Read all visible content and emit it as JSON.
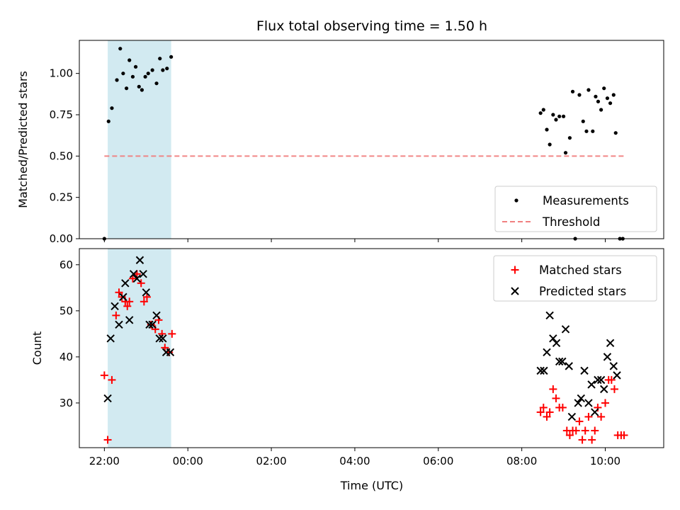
{
  "chart_data": {
    "type": "scatter",
    "title": "Flux total observing time = 1.50 h",
    "xlabel": "Time (UTC)",
    "x_unit": "hours since 22:00 UTC (tick labels wrap past 24:00)",
    "xlim": [
      -0.6,
      13.4
    ],
    "xticks": [
      0,
      2,
      4,
      6,
      8,
      10,
      12
    ],
    "xtick_labels": [
      "22:00",
      "00:00",
      "02:00",
      "04:00",
      "06:00",
      "08:00",
      "10:00"
    ],
    "observing_span": {
      "start": 0.08,
      "end": 1.6,
      "color": "#add8e6"
    },
    "top": {
      "ylabel": "Matched/Predicted stars",
      "ylim": [
        0,
        1.2
      ],
      "yticks": [
        0.0,
        0.25,
        0.5,
        0.75,
        1.0
      ],
      "ytick_labels": [
        "0.00",
        "0.25",
        "0.50",
        "0.75",
        "1.00"
      ],
      "legend": {
        "position": "bottom-right",
        "entries": [
          "Measurements",
          "Threshold"
        ]
      },
      "series": [
        {
          "name": "Measurements",
          "marker": "dot",
          "color": "#000000",
          "points": [
            [
              0.0,
              0.0
            ],
            [
              0.1,
              0.71
            ],
            [
              0.18,
              0.79
            ],
            [
              0.3,
              0.96
            ],
            [
              0.38,
              1.15
            ],
            [
              0.45,
              1.0
            ],
            [
              0.53,
              0.91
            ],
            [
              0.6,
              1.08
            ],
            [
              0.68,
              0.98
            ],
            [
              0.75,
              1.04
            ],
            [
              0.83,
              0.92
            ],
            [
              0.9,
              0.9
            ],
            [
              0.98,
              0.98
            ],
            [
              1.05,
              1.0
            ],
            [
              1.15,
              1.02
            ],
            [
              1.25,
              0.94
            ],
            [
              1.33,
              1.09
            ],
            [
              1.4,
              1.02
            ],
            [
              1.5,
              1.03
            ],
            [
              1.6,
              1.1
            ],
            [
              10.45,
              0.76
            ],
            [
              10.52,
              0.78
            ],
            [
              10.6,
              0.66
            ],
            [
              10.67,
              0.57
            ],
            [
              10.75,
              0.75
            ],
            [
              10.82,
              0.72
            ],
            [
              10.9,
              0.74
            ],
            [
              11.0,
              0.74
            ],
            [
              11.05,
              0.52
            ],
            [
              11.15,
              0.61
            ],
            [
              11.22,
              0.89
            ],
            [
              11.28,
              0.0
            ],
            [
              11.38,
              0.87
            ],
            [
              11.47,
              0.71
            ],
            [
              11.55,
              0.65
            ],
            [
              11.6,
              0.9
            ],
            [
              11.7,
              0.65
            ],
            [
              11.77,
              0.86
            ],
            [
              11.83,
              0.83
            ],
            [
              11.9,
              0.78
            ],
            [
              11.97,
              0.91
            ],
            [
              12.05,
              0.85
            ],
            [
              12.12,
              0.82
            ],
            [
              12.2,
              0.87
            ],
            [
              12.25,
              0.64
            ],
            [
              12.35,
              0.0
            ],
            [
              12.42,
              0.0
            ]
          ]
        },
        {
          "name": "Threshold",
          "style": "dashed",
          "color": "#f08080",
          "points": [
            [
              0.0,
              0.5
            ],
            [
              12.45,
              0.5
            ]
          ]
        }
      ]
    },
    "bottom": {
      "ylabel": "Count",
      "ylim": [
        20.3,
        63.5
      ],
      "yticks": [
        30,
        40,
        50,
        60
      ],
      "ytick_labels": [
        "30",
        "40",
        "50",
        "60"
      ],
      "legend": {
        "position": "top-right",
        "entries": [
          "Matched stars",
          "Predicted stars"
        ]
      },
      "series": [
        {
          "name": "Matched stars",
          "marker": "plus",
          "color": "#ff0000",
          "points": [
            [
              0.0,
              36
            ],
            [
              0.08,
              22
            ],
            [
              0.18,
              35
            ],
            [
              0.28,
              49
            ],
            [
              0.35,
              54
            ],
            [
              0.42,
              53
            ],
            [
              0.5,
              52
            ],
            [
              0.55,
              51
            ],
            [
              0.6,
              52
            ],
            [
              0.68,
              57
            ],
            [
              0.78,
              58
            ],
            [
              0.88,
              56
            ],
            [
              0.95,
              52
            ],
            [
              1.02,
              53
            ],
            [
              1.12,
              47
            ],
            [
              1.22,
              46
            ],
            [
              1.3,
              48
            ],
            [
              1.38,
              45
            ],
            [
              1.45,
              42
            ],
            [
              1.55,
              41
            ],
            [
              1.62,
              45
            ],
            [
              10.45,
              28
            ],
            [
              10.52,
              29
            ],
            [
              10.6,
              27
            ],
            [
              10.67,
              28
            ],
            [
              10.75,
              33
            ],
            [
              10.82,
              31
            ],
            [
              10.9,
              29
            ],
            [
              10.98,
              29
            ],
            [
              11.08,
              24
            ],
            [
              11.15,
              23
            ],
            [
              11.22,
              24
            ],
            [
              11.3,
              24
            ],
            [
              11.38,
              26
            ],
            [
              11.45,
              22
            ],
            [
              11.52,
              24
            ],
            [
              11.6,
              27
            ],
            [
              11.68,
              22
            ],
            [
              11.75,
              24
            ],
            [
              11.82,
              29
            ],
            [
              11.9,
              27
            ],
            [
              12.0,
              30
            ],
            [
              12.08,
              35
            ],
            [
              12.15,
              35
            ],
            [
              12.22,
              33
            ],
            [
              12.3,
              23
            ],
            [
              12.38,
              23
            ],
            [
              12.45,
              23
            ]
          ]
        },
        {
          "name": "Predicted stars",
          "marker": "x",
          "color": "#000000",
          "points": [
            [
              0.08,
              31
            ],
            [
              0.15,
              44
            ],
            [
              0.25,
              51
            ],
            [
              0.35,
              47
            ],
            [
              0.45,
              53
            ],
            [
              0.5,
              56
            ],
            [
              0.6,
              48
            ],
            [
              0.7,
              58
            ],
            [
              0.78,
              57
            ],
            [
              0.85,
              61
            ],
            [
              0.93,
              58
            ],
            [
              1.0,
              54
            ],
            [
              1.08,
              47
            ],
            [
              1.15,
              47
            ],
            [
              1.25,
              49
            ],
            [
              1.32,
              44
            ],
            [
              1.4,
              44
            ],
            [
              1.48,
              41
            ],
            [
              1.58,
              41
            ],
            [
              10.45,
              37
            ],
            [
              10.53,
              37
            ],
            [
              10.6,
              41
            ],
            [
              10.67,
              49
            ],
            [
              10.75,
              44
            ],
            [
              10.83,
              43
            ],
            [
              10.9,
              39
            ],
            [
              10.97,
              39
            ],
            [
              11.05,
              46
            ],
            [
              11.13,
              38
            ],
            [
              11.2,
              27
            ],
            [
              11.35,
              30
            ],
            [
              11.42,
              31
            ],
            [
              11.5,
              37
            ],
            [
              11.6,
              30
            ],
            [
              11.67,
              34
            ],
            [
              11.75,
              28
            ],
            [
              11.82,
              35
            ],
            [
              11.9,
              35
            ],
            [
              11.97,
              33
            ],
            [
              12.05,
              40
            ],
            [
              12.12,
              43
            ],
            [
              12.2,
              38
            ],
            [
              12.28,
              36
            ]
          ]
        }
      ]
    }
  }
}
